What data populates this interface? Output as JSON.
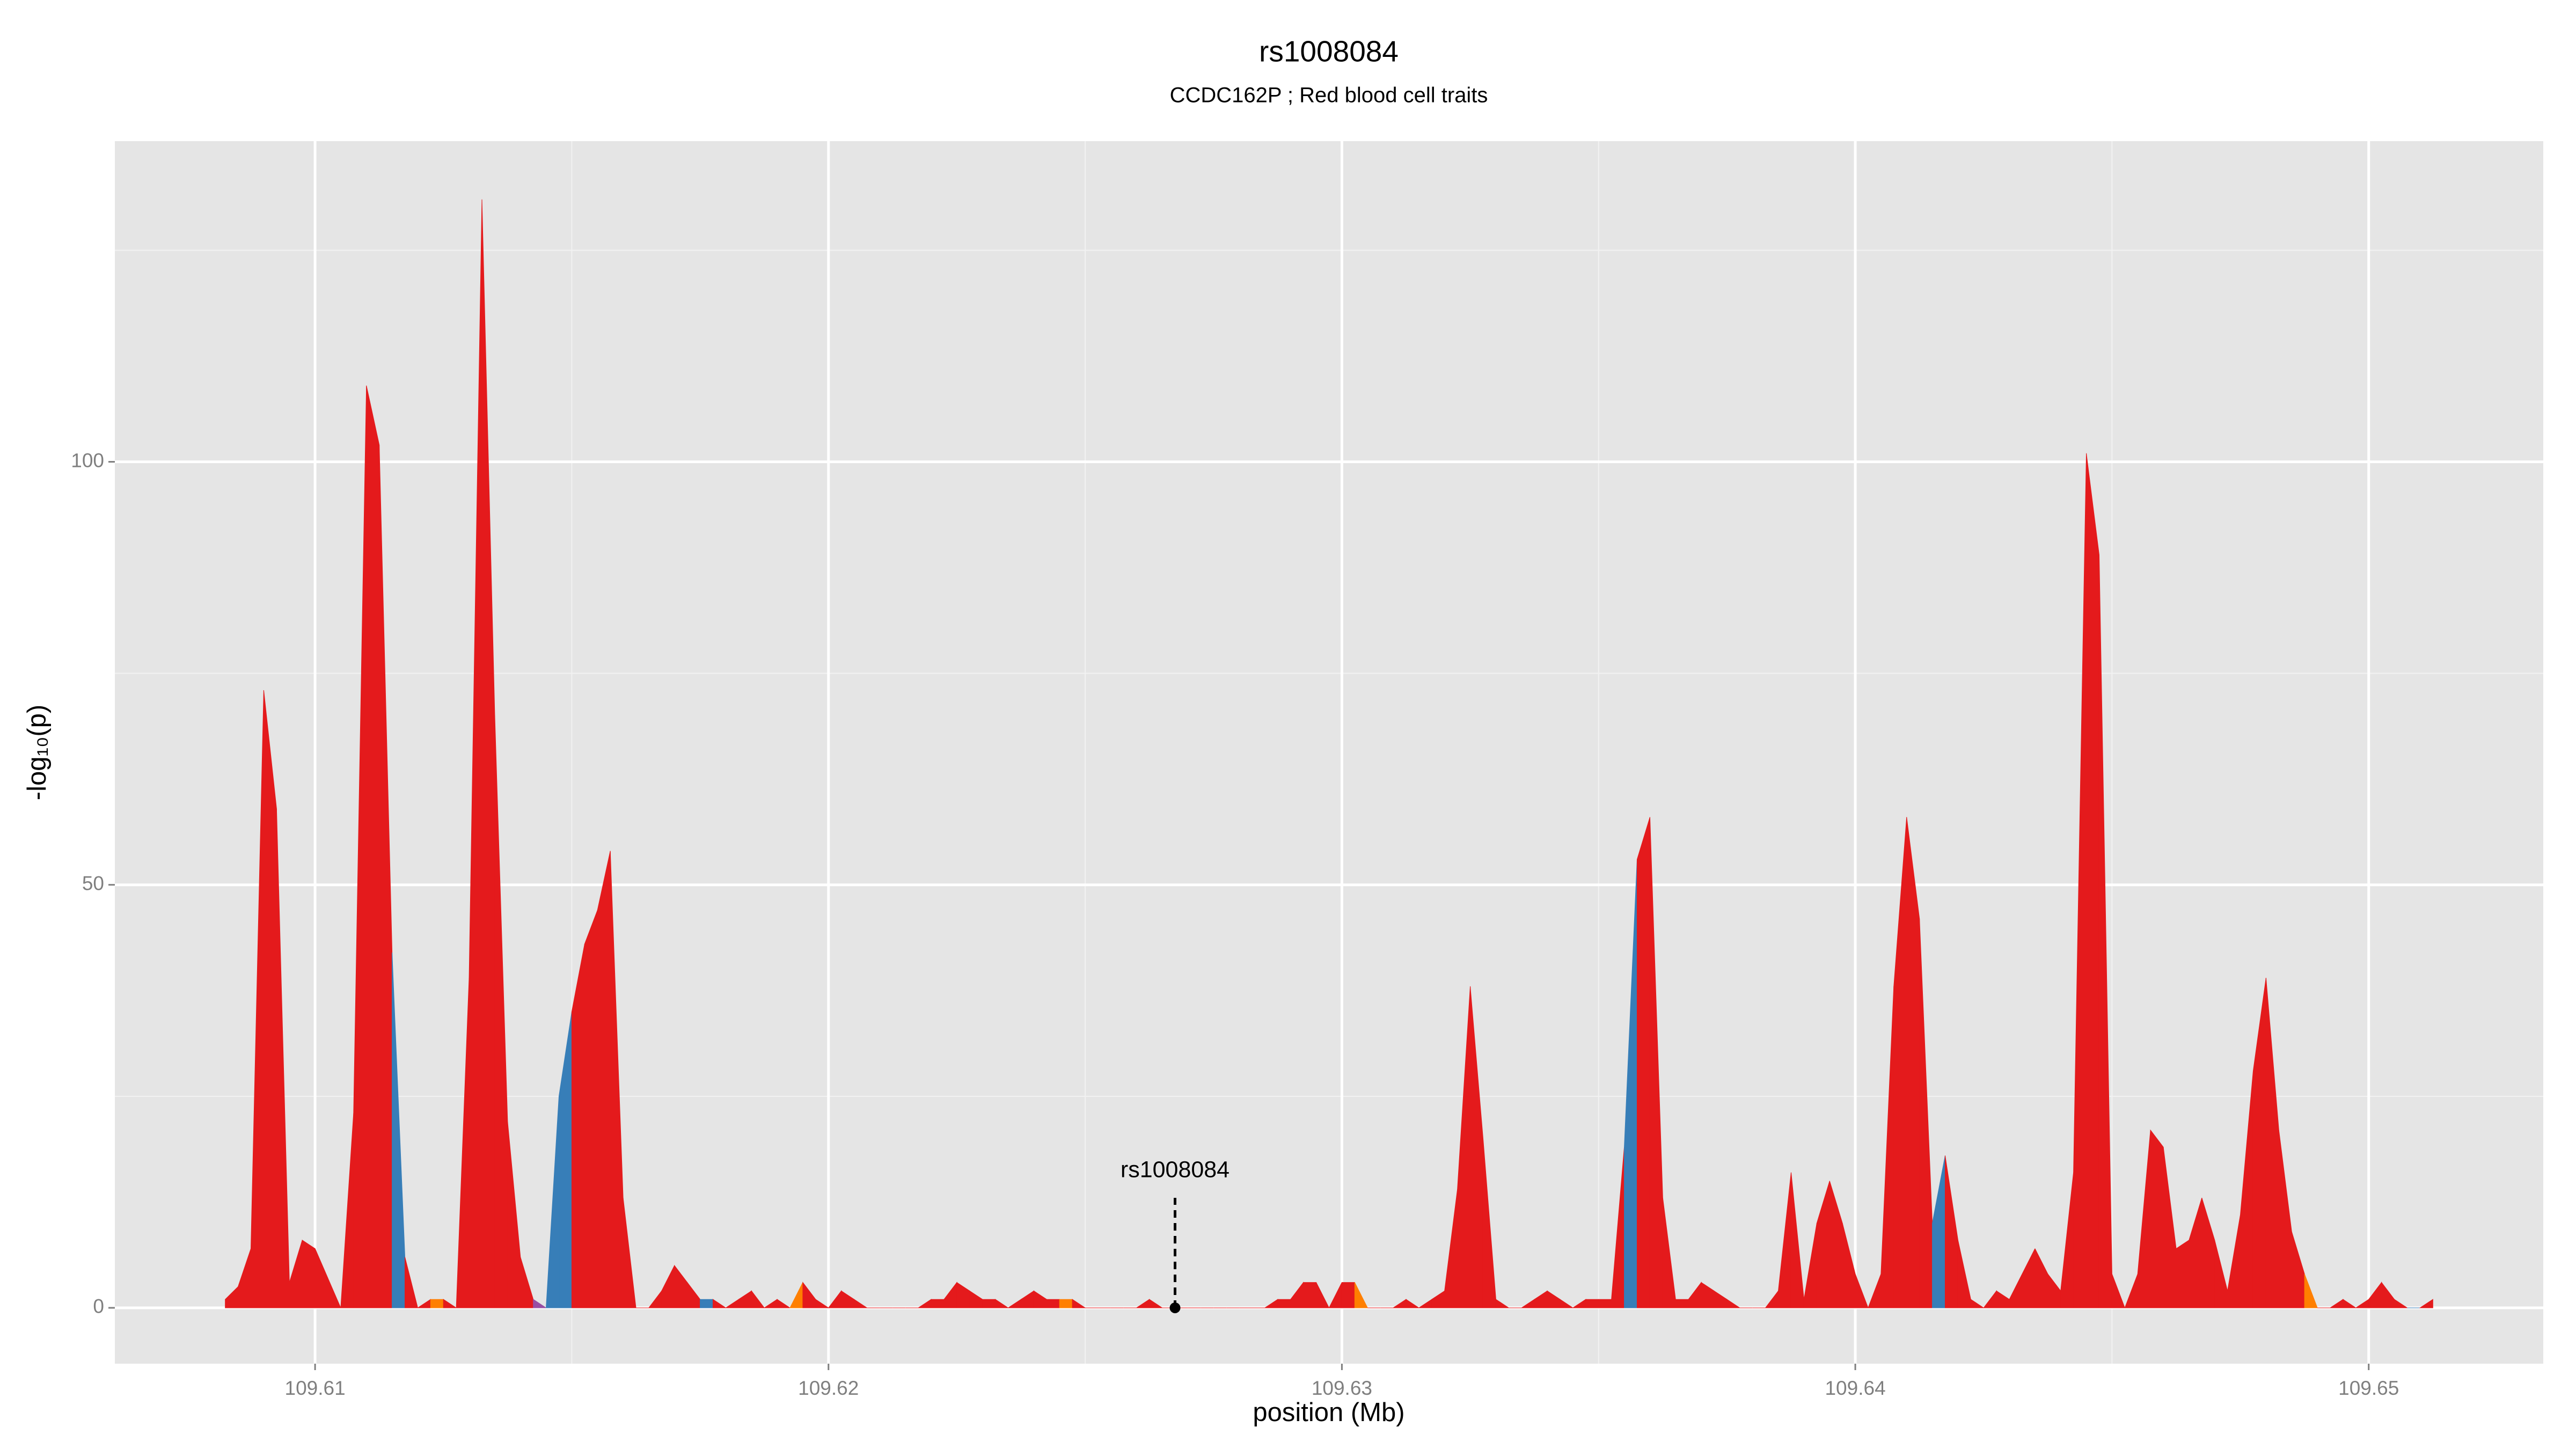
{
  "chart_data": {
    "type": "area",
    "title": "rs1008084",
    "subtitle": "CCDC162P ; Red blood cell traits",
    "x_label": "position (Mb)",
    "y_label": "-log₁₀(p)",
    "xlim": [
      109.6061,
      109.6534
    ],
    "ylim": [
      -6.6,
      137.9
    ],
    "xticks": [
      109.61,
      109.62,
      109.63,
      109.64,
      109.65
    ],
    "yticks": [
      0,
      50,
      100
    ],
    "x_minor_grid": [
      109.615,
      109.625,
      109.635,
      109.645
    ],
    "y_minor_grid": [
      25,
      75,
      125
    ],
    "grid": true,
    "x": [
      109.60825,
      109.6085,
      109.60875,
      109.609,
      109.60925,
      109.6095,
      109.60975,
      109.61,
      109.61025,
      109.6105,
      109.61075,
      109.611,
      109.61125,
      109.6115,
      109.61175,
      109.612,
      109.61225,
      109.6125,
      109.61275,
      109.613,
      109.61325,
      109.6135,
      109.61375,
      109.614,
      109.61425,
      109.6145,
      109.61475,
      109.615,
      109.61525,
      109.6155,
      109.61575,
      109.616,
      109.61625,
      109.6165,
      109.61675,
      109.617,
      109.61725,
      109.6175,
      109.61775,
      109.618,
      109.61825,
      109.6185,
      109.61875,
      109.619,
      109.61925,
      109.6195,
      109.61975,
      109.62,
      109.62025,
      109.6205,
      109.62075,
      109.621,
      109.62125,
      109.6215,
      109.62175,
      109.622,
      109.62225,
      109.6225,
      109.62275,
      109.623,
      109.62325,
      109.6235,
      109.62375,
      109.624,
      109.62425,
      109.6245,
      109.62475,
      109.625,
      109.62525,
      109.6255,
      109.62575,
      109.626,
      109.62625,
      109.6265,
      109.62675,
      109.627,
      109.62725,
      109.6275,
      109.62775,
      109.628,
      109.62825,
      109.6285,
      109.62875,
      109.629,
      109.62925,
      109.6295,
      109.62975,
      109.63,
      109.63025,
      109.6305,
      109.63075,
      109.631,
      109.63125,
      109.6315,
      109.63175,
      109.632,
      109.63225,
      109.6325,
      109.63275,
      109.633,
      109.63325,
      109.6335,
      109.63375,
      109.634,
      109.63425,
      109.6345,
      109.63475,
      109.635,
      109.63525,
      109.6355,
      109.63575,
      109.636,
      109.63625,
      109.6365,
      109.63675,
      109.637,
      109.63725,
      109.6375,
      109.63775,
      109.638,
      109.63825,
      109.6385,
      109.63875,
      109.639,
      109.63925,
      109.6395,
      109.63975,
      109.64,
      109.64025,
      109.6405,
      109.64075,
      109.641,
      109.64125,
      109.6415,
      109.64175,
      109.642,
      109.64225,
      109.6425,
      109.64275,
      109.643,
      109.64325,
      109.6435,
      109.64375,
      109.644,
      109.64425,
      109.6445,
      109.64475,
      109.645,
      109.64525,
      109.6455,
      109.64575,
      109.646,
      109.64625,
      109.6465,
      109.64675,
      109.647,
      109.64725,
      109.6475,
      109.64775,
      109.648,
      109.64825,
      109.6485,
      109.64875,
      109.649,
      109.64925,
      109.6495,
      109.64975,
      109.65,
      109.65025,
      109.6505,
      109.65075,
      109.651,
      109.65125
    ],
    "values": [
      1,
      2.5,
      7,
      73,
      59,
      3,
      8,
      7,
      3.5,
      0,
      23,
      109,
      102,
      42,
      6,
      0,
      1,
      1,
      0,
      39,
      131,
      70,
      22,
      6,
      1,
      0,
      25,
      35,
      43,
      47,
      54,
      13,
      0,
      0,
      2,
      5,
      3,
      1,
      1,
      0,
      1,
      2,
      0,
      1,
      0,
      3,
      1,
      0,
      2,
      1,
      0,
      0,
      0,
      0,
      0,
      1,
      1,
      3,
      2,
      1,
      1,
      0,
      1,
      2,
      1,
      1,
      1,
      0,
      0,
      0,
      0,
      0,
      1,
      0,
      0,
      0,
      0,
      0,
      0,
      0,
      0,
      0,
      1,
      1,
      3,
      3,
      0,
      3,
      3,
      0,
      0,
      0,
      1,
      0,
      1,
      2,
      14,
      38,
      20,
      1,
      0,
      0,
      1,
      2,
      1,
      0,
      1,
      1,
      1,
      19,
      53,
      58,
      13,
      1,
      1,
      3,
      2,
      1,
      0,
      0,
      0,
      2,
      16,
      1,
      10,
      15,
      10,
      4,
      0,
      4,
      38,
      58,
      46,
      10,
      18,
      8,
      1,
      0,
      2,
      1,
      4,
      7,
      4,
      2,
      16,
      101,
      89,
      4,
      0,
      4,
      21,
      19,
      7,
      8,
      13,
      8,
      2,
      11,
      28,
      39,
      21,
      9,
      4,
      0,
      0,
      1,
      0,
      1,
      3,
      1,
      0,
      0,
      1
    ],
    "point_colors": [
      "#e41a1c",
      "#e41a1c",
      "#e41a1c",
      "#e41a1c",
      "#e41a1c",
      "#e41a1c",
      "#e41a1c",
      "#e41a1c",
      "#e41a1c",
      "#e41a1c",
      "#e41a1c",
      "#e41a1c",
      "#e41a1c",
      "#377eb8",
      "#e41a1c",
      "#e41a1c",
      "#ff7f00",
      "#e41a1c",
      "#e41a1c",
      "#e41a1c",
      "#e41a1c",
      "#e41a1c",
      "#e41a1c",
      "#e41a1c",
      "#984ea3",
      "#377eb8",
      "#377eb8",
      "#e41a1c",
      "#e41a1c",
      "#e41a1c",
      "#e41a1c",
      "#e41a1c",
      "#e41a1c",
      "#e41a1c",
      "#e41a1c",
      "#e41a1c",
      "#e41a1c",
      "#377eb8",
      "#e41a1c",
      "#e41a1c",
      "#e41a1c",
      "#e41a1c",
      "#e41a1c",
      "#e41a1c",
      "#ff7f00",
      "#e41a1c",
      "#e41a1c",
      "#e41a1c",
      "#e41a1c",
      "#e41a1c",
      "#e41a1c",
      "#e41a1c",
      "#e41a1c",
      "#e41a1c",
      "#e41a1c",
      "#e41a1c",
      "#e41a1c",
      "#e41a1c",
      "#e41a1c",
      "#e41a1c",
      "#e41a1c",
      "#e41a1c",
      "#e41a1c",
      "#e41a1c",
      "#e41a1c",
      "#ff7f00",
      "#e41a1c",
      "#e41a1c",
      "#e41a1c",
      "#e41a1c",
      "#e41a1c",
      "#e41a1c",
      "#e41a1c",
      "#e41a1c",
      "#e41a1c",
      "#e41a1c",
      "#e41a1c",
      "#e41a1c",
      "#e41a1c",
      "#e41a1c",
      "#e41a1c",
      "#e41a1c",
      "#e41a1c",
      "#e41a1c",
      "#e41a1c",
      "#e41a1c",
      "#e41a1c",
      "#e41a1c",
      "#ff7f00",
      "#e41a1c",
      "#e41a1c",
      "#e41a1c",
      "#e41a1c",
      "#e41a1c",
      "#e41a1c",
      "#e41a1c",
      "#e41a1c",
      "#e41a1c",
      "#e41a1c",
      "#e41a1c",
      "#e41a1c",
      "#e41a1c",
      "#e41a1c",
      "#e41a1c",
      "#e41a1c",
      "#e41a1c",
      "#e41a1c",
      "#e41a1c",
      "#e41a1c",
      "#377eb8",
      "#e41a1c",
      "#e41a1c",
      "#e41a1c",
      "#e41a1c",
      "#e41a1c",
      "#e41a1c",
      "#e41a1c",
      "#e41a1c",
      "#e41a1c",
      "#e41a1c",
      "#e41a1c",
      "#e41a1c",
      "#e41a1c",
      "#e41a1c",
      "#e41a1c",
      "#e41a1c",
      "#e41a1c",
      "#e41a1c",
      "#e41a1c",
      "#e41a1c",
      "#e41a1c",
      "#e41a1c",
      "#e41a1c",
      "#377eb8",
      "#e41a1c",
      "#e41a1c",
      "#e41a1c",
      "#e41a1c",
      "#e41a1c",
      "#e41a1c",
      "#e41a1c",
      "#e41a1c",
      "#e41a1c",
      "#e41a1c",
      "#e41a1c",
      "#e41a1c",
      "#e41a1c",
      "#e41a1c",
      "#e41a1c",
      "#e41a1c",
      "#e41a1c",
      "#e41a1c",
      "#e41a1c",
      "#e41a1c",
      "#e41a1c",
      "#e41a1c",
      "#e41a1c",
      "#e41a1c",
      "#e41a1c",
      "#e41a1c",
      "#e41a1c",
      "#e41a1c",
      "#ff7f00",
      "#e41a1c",
      "#e41a1c",
      "#e41a1c",
      "#e41a1c",
      "#e41a1c",
      "#e41a1c",
      "#e41a1c",
      "#377eb8",
      "#e41a1c",
      "#e41a1c",
      "#e41a1c",
      "#e41a1c",
      "#e41a1c",
      "#e41a1c"
    ],
    "annotation": {
      "text": "rs1008084",
      "x": 109.62675,
      "y": 0
    }
  }
}
